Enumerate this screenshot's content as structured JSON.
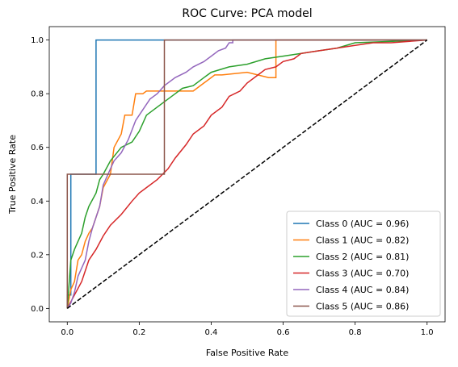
{
  "chart_data": {
    "type": "line",
    "title": "ROC Curve: PCA model",
    "xlabel": "False Positive Rate",
    "ylabel": "True Positive Rate",
    "xlim": [
      -0.05,
      1.05
    ],
    "ylim": [
      -0.05,
      1.05
    ],
    "xticks": [
      "0.0",
      "0.2",
      "0.4",
      "0.6",
      "0.8",
      "1.0"
    ],
    "yticks": [
      "0.0",
      "0.2",
      "0.4",
      "0.6",
      "0.8",
      "1.0"
    ],
    "grid": false,
    "legend_position": "lower-right",
    "diagonal": {
      "x": [
        0,
        1
      ],
      "y": [
        0,
        1
      ],
      "color": "#000000",
      "style": "dashed"
    },
    "series": [
      {
        "name": "Class 0 (AUC = 0.96)",
        "color": "#1f77b4",
        "x": [
          0,
          0,
          0.01,
          0.01,
          0.08,
          0.08,
          1.0
        ],
        "y": [
          0,
          0.05,
          0.05,
          0.5,
          0.5,
          1.0,
          1.0
        ]
      },
      {
        "name": "Class 1 (AUC = 0.82)",
        "color": "#ff7f0e",
        "x": [
          0,
          0.01,
          0.02,
          0.03,
          0.04,
          0.05,
          0.06,
          0.07,
          0.09,
          0.1,
          0.12,
          0.13,
          0.15,
          0.16,
          0.18,
          0.19,
          0.21,
          0.22,
          0.25,
          0.27,
          0.28,
          0.35,
          0.38,
          0.41,
          0.43,
          0.5,
          0.56,
          0.58,
          0.58,
          0.7,
          1.0
        ],
        "y": [
          0,
          0.07,
          0.1,
          0.18,
          0.2,
          0.25,
          0.28,
          0.3,
          0.38,
          0.45,
          0.5,
          0.6,
          0.65,
          0.72,
          0.72,
          0.8,
          0.8,
          0.81,
          0.81,
          0.81,
          0.81,
          0.81,
          0.84,
          0.87,
          0.87,
          0.88,
          0.86,
          0.86,
          1.0,
          1.0,
          1.0
        ]
      },
      {
        "name": "Class 2 (AUC = 0.81)",
        "color": "#2ca02c",
        "x": [
          0,
          0.01,
          0.02,
          0.03,
          0.04,
          0.05,
          0.06,
          0.08,
          0.09,
          0.1,
          0.12,
          0.15,
          0.18,
          0.2,
          0.22,
          0.25,
          0.28,
          0.3,
          0.32,
          0.35,
          0.38,
          0.4,
          0.45,
          0.5,
          0.55,
          0.6,
          0.65,
          0.7,
          0.75,
          0.8,
          1.0
        ],
        "y": [
          0,
          0.18,
          0.22,
          0.25,
          0.28,
          0.34,
          0.38,
          0.43,
          0.48,
          0.5,
          0.55,
          0.6,
          0.62,
          0.66,
          0.72,
          0.75,
          0.78,
          0.8,
          0.82,
          0.83,
          0.86,
          0.88,
          0.9,
          0.91,
          0.93,
          0.94,
          0.95,
          0.96,
          0.97,
          0.99,
          1.0
        ]
      },
      {
        "name": "Class 3 (AUC = 0.70)",
        "color": "#d62728",
        "x": [
          0,
          0.02,
          0.04,
          0.06,
          0.08,
          0.1,
          0.12,
          0.15,
          0.18,
          0.2,
          0.22,
          0.25,
          0.28,
          0.3,
          0.33,
          0.35,
          0.38,
          0.4,
          0.43,
          0.45,
          0.48,
          0.5,
          0.53,
          0.55,
          0.58,
          0.6,
          0.63,
          0.65,
          0.7,
          0.75,
          0.8,
          0.85,
          0.9,
          1.0
        ],
        "y": [
          0,
          0.05,
          0.1,
          0.18,
          0.22,
          0.27,
          0.31,
          0.35,
          0.4,
          0.43,
          0.45,
          0.48,
          0.52,
          0.56,
          0.61,
          0.65,
          0.68,
          0.72,
          0.75,
          0.79,
          0.81,
          0.84,
          0.87,
          0.89,
          0.9,
          0.92,
          0.93,
          0.95,
          0.96,
          0.97,
          0.98,
          0.99,
          0.99,
          1.0
        ]
      },
      {
        "name": "Class 4 (AUC = 0.84)",
        "color": "#9467bd",
        "x": [
          0,
          0.01,
          0.02,
          0.03,
          0.05,
          0.06,
          0.07,
          0.09,
          0.1,
          0.12,
          0.13,
          0.15,
          0.17,
          0.19,
          0.21,
          0.23,
          0.25,
          0.27,
          0.3,
          0.33,
          0.35,
          0.38,
          0.4,
          0.42,
          0.44,
          0.45,
          0.46,
          0.46,
          0.55,
          1.0
        ],
        "y": [
          0,
          0.02,
          0.06,
          0.12,
          0.18,
          0.25,
          0.3,
          0.38,
          0.46,
          0.52,
          0.55,
          0.58,
          0.63,
          0.7,
          0.74,
          0.78,
          0.8,
          0.83,
          0.86,
          0.88,
          0.9,
          0.92,
          0.94,
          0.96,
          0.97,
          0.99,
          0.99,
          1.0,
          1.0,
          1.0
        ]
      },
      {
        "name": "Class 5 (AUC = 0.86)",
        "color": "#8c564b",
        "x": [
          0,
          0,
          0.27,
          0.27,
          1.0
        ],
        "y": [
          0,
          0.5,
          0.5,
          1.0,
          1.0
        ]
      }
    ]
  }
}
